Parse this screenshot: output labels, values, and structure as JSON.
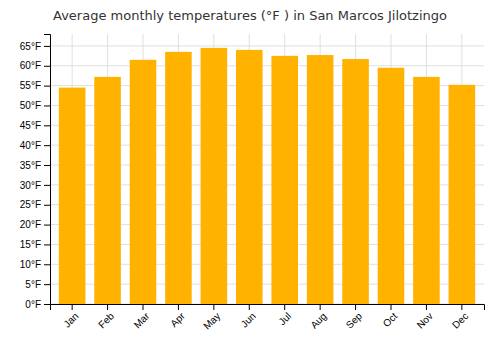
{
  "chart_data": {
    "type": "bar",
    "title": "Average monthly temperatures (°F ) in San Marcos Jilotzingo",
    "categories": [
      "Jan",
      "Feb",
      "Mar",
      "Apr",
      "May",
      "Jun",
      "Jul",
      "Aug",
      "Sep",
      "Oct",
      "Nov",
      "Dec"
    ],
    "values": [
      54.5,
      57.2,
      61.5,
      63.5,
      64.5,
      64.0,
      62.5,
      62.7,
      61.7,
      59.5,
      57.2,
      55.2
    ],
    "color": "#FFB300",
    "ylim": [
      0,
      68
    ],
    "yticks": [
      {
        "value": 0,
        "label": "0°F"
      },
      {
        "value": 5,
        "label": "5°F"
      },
      {
        "value": 10,
        "label": "10°F"
      },
      {
        "value": 15,
        "label": "15°F"
      },
      {
        "value": 20,
        "label": "20°F"
      },
      {
        "value": 25,
        "label": "25°F"
      },
      {
        "value": 30,
        "label": "30°F"
      },
      {
        "value": 35,
        "label": "35°F"
      },
      {
        "value": 40,
        "label": "40°F"
      },
      {
        "value": 45,
        "label": "45°F"
      },
      {
        "value": 50,
        "label": "50°F"
      },
      {
        "value": 55,
        "label": "55°F"
      },
      {
        "value": 60,
        "label": "60°F"
      },
      {
        "value": 65,
        "label": "65°F"
      }
    ],
    "grid": true
  }
}
